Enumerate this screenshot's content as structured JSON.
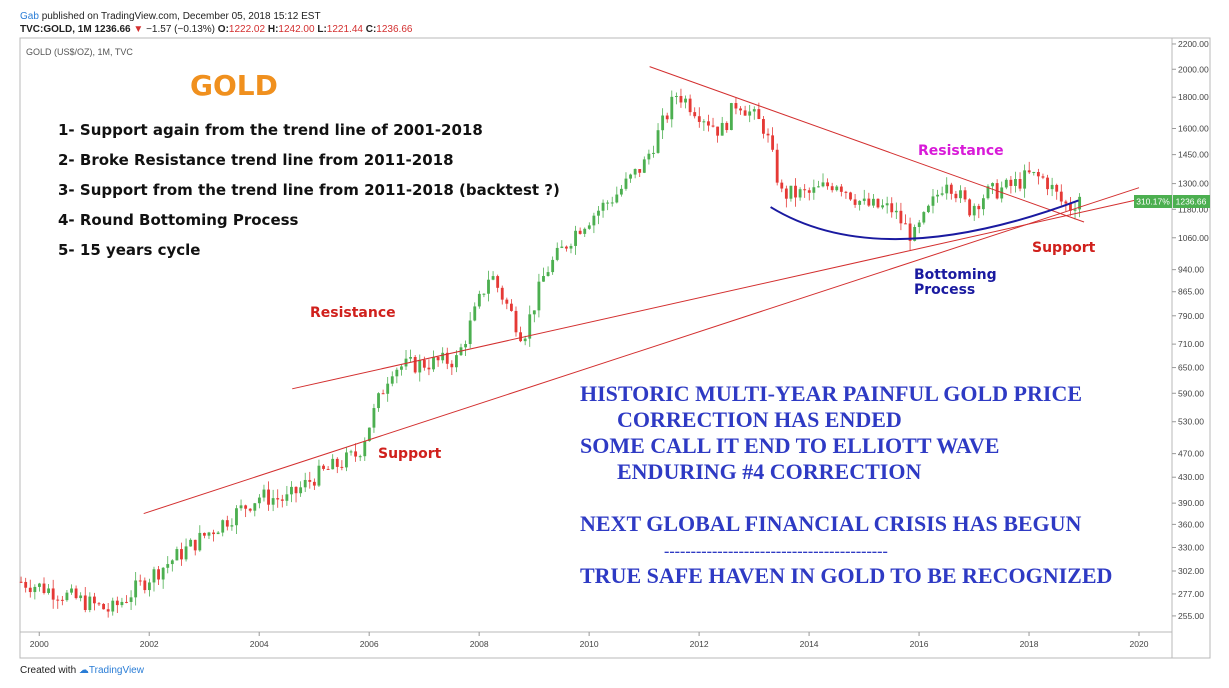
{
  "header": {
    "author": "Gab",
    "published": "published on TradingView.com, December 05, 2018 15:12 EST",
    "symbol_line": "TVC:GOLD, 1M",
    "last": "1236.66",
    "change_arrow": "▼",
    "change": "−1.57 (−0.13%)",
    "open_label": "O:",
    "open": "1222.02",
    "high_label": "H:",
    "high": "1242.00",
    "low_label": "L:",
    "low": "1221.44",
    "close_label": "C:",
    "close": "1236.66"
  },
  "footer": {
    "created_with": "Created with",
    "brand": "TradingView"
  },
  "colors": {
    "up": "#4caf50",
    "down": "#e53935",
    "trend": "#d32f2f",
    "arc": "#1a1aa0",
    "blue_text": "#2e3ac4",
    "gold": "#f0901e",
    "magenta": "#d81ad8",
    "red_text": "#d0201c",
    "badge_green": "#4caf50"
  },
  "chart_data": {
    "type": "candlestick",
    "title": "GOLD (US$/OZ), 1M, TVC",
    "xlabel": "",
    "ylabel": "",
    "scale": "log",
    "ylim": [
      240,
      2250
    ],
    "xlim": [
      1999.65,
      2020.6
    ],
    "xticks": [
      "2000",
      "2002",
      "2004",
      "2006",
      "2008",
      "2010",
      "2012",
      "2014",
      "2016",
      "2018",
      "2020"
    ],
    "yticks": [
      "2200.00",
      "2000.00",
      "1800.00",
      "1600.00",
      "1450.00",
      "1300.00",
      "1180.00",
      "1060.00",
      "940.00",
      "865.00",
      "790.00",
      "710.00",
      "650.00",
      "590.00",
      "530.00",
      "470.00",
      "430.00",
      "390.00",
      "360.00",
      "330.00",
      "302.00",
      "277.00",
      "255.00"
    ],
    "price_badge": "1236.66",
    "pct_badge": "310.17%",
    "anchors": [
      [
        1999.67,
        290
      ],
      [
        2000.0,
        285
      ],
      [
        2001.3,
        260
      ],
      [
        2002.0,
        295
      ],
      [
        2003.0,
        345
      ],
      [
        2004.0,
        400
      ],
      [
        2004.5,
        395
      ],
      [
        2005.0,
        430
      ],
      [
        2005.8,
        470
      ],
      [
        2006.4,
        650
      ],
      [
        2007.0,
        660
      ],
      [
        2007.6,
        670
      ],
      [
        2008.2,
        930
      ],
      [
        2008.8,
        730
      ],
      [
        2009.2,
        930
      ],
      [
        2009.8,
        1100
      ],
      [
        2010.5,
        1250
      ],
      [
        2011.0,
        1400
      ],
      [
        2011.6,
        1830
      ],
      [
        2012.0,
        1700
      ],
      [
        2012.4,
        1580
      ],
      [
        2012.7,
        1780
      ],
      [
        2013.2,
        1600
      ],
      [
        2013.5,
        1250
      ],
      [
        2014.0,
        1250
      ],
      [
        2014.5,
        1310
      ],
      [
        2015.0,
        1200
      ],
      [
        2015.5,
        1180
      ],
      [
        2015.9,
        1060
      ],
      [
        2016.1,
        1140
      ],
      [
        2016.5,
        1330
      ],
      [
        2016.9,
        1180
      ],
      [
        2017.2,
        1250
      ],
      [
        2017.7,
        1290
      ],
      [
        2018.0,
        1340
      ],
      [
        2018.3,
        1320
      ],
      [
        2018.6,
        1210
      ],
      [
        2018.75,
        1190
      ],
      [
        2018.92,
        1236.66
      ]
    ],
    "annotations": {
      "gold_title": "GOLD",
      "list": [
        "1- Support again from the trend line of 2001-2018",
        "2- Broke Resistance trend line from 2011-2018",
        "3- Support from the trend line from 2011-2018 (backtest ?)",
        "4- Round Bottoming Process",
        "5- 15 years cycle"
      ],
      "resistance_left": "Resistance",
      "support_left": "Support",
      "resistance_right": "Resistance",
      "support_right": "Support",
      "bottoming_1": "Bottoming",
      "bottoming_2": "Process",
      "blue_lines": [
        "HISTORIC MULTI-YEAR PAINFUL GOLD PRICE",
        "CORRECTION HAS ENDED",
        "SOME CALL IT END TO ELLIOTT WAVE",
        "ENDURING #4 CORRECTION",
        "NEXT GLOBAL FINANCIAL CRISIS HAS BEGUN",
        "------------------------------------------",
        "TRUE SAFE HAVEN IN GOLD TO BE RECOGNIZED"
      ]
    },
    "trendlines": [
      {
        "name": "support-2001-2018",
        "from": [
          2001.9,
          375
        ],
        "to": [
          2020.0,
          1280
        ]
      },
      {
        "name": "resistance-2004-2018",
        "from": [
          2004.6,
          600
        ],
        "to": [
          2020.0,
          1225
        ]
      },
      {
        "name": "resistance-2011-2018",
        "from": [
          2011.1,
          2020
        ],
        "to": [
          2019.0,
          1125
        ]
      }
    ],
    "arc": {
      "from": [
        2013.3,
        1190
      ],
      "mid": [
        2015.7,
        1055
      ],
      "to": [
        2018.9,
        1220
      ]
    }
  }
}
